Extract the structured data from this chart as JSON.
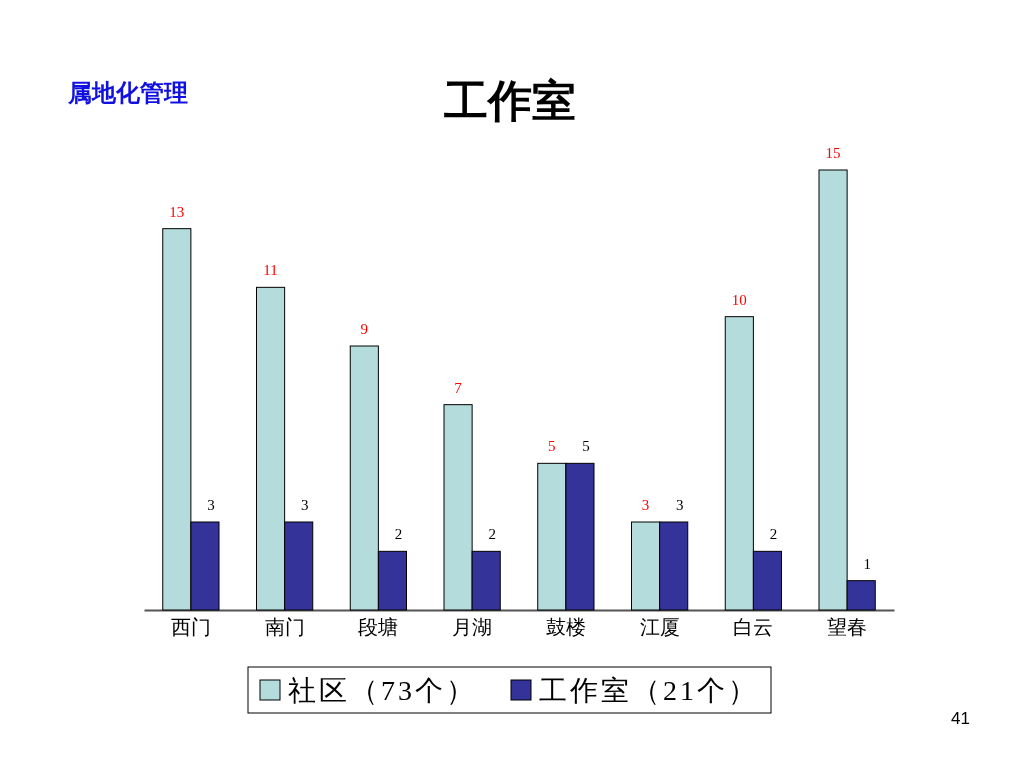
{
  "chart_data": {
    "type": "bar",
    "title": "工作室",
    "subtitle": "属地化管理",
    "categories": [
      "西门",
      "南门",
      "段塘",
      "月湖",
      "鼓楼",
      "江厦",
      "白云",
      "望春"
    ],
    "series": [
      {
        "name": "社区（73个）",
        "color": "#b4dcdc",
        "values": [
          13,
          11,
          9,
          7,
          5,
          3,
          10,
          15
        ]
      },
      {
        "name": "工作室（21个）",
        "color": "#333399",
        "values": [
          3,
          3,
          2,
          2,
          5,
          3,
          2,
          1
        ]
      }
    ],
    "data_labels": true,
    "legend": "bottom",
    "tick_labels": "x",
    "annotations": [
      "41"
    ]
  }
}
